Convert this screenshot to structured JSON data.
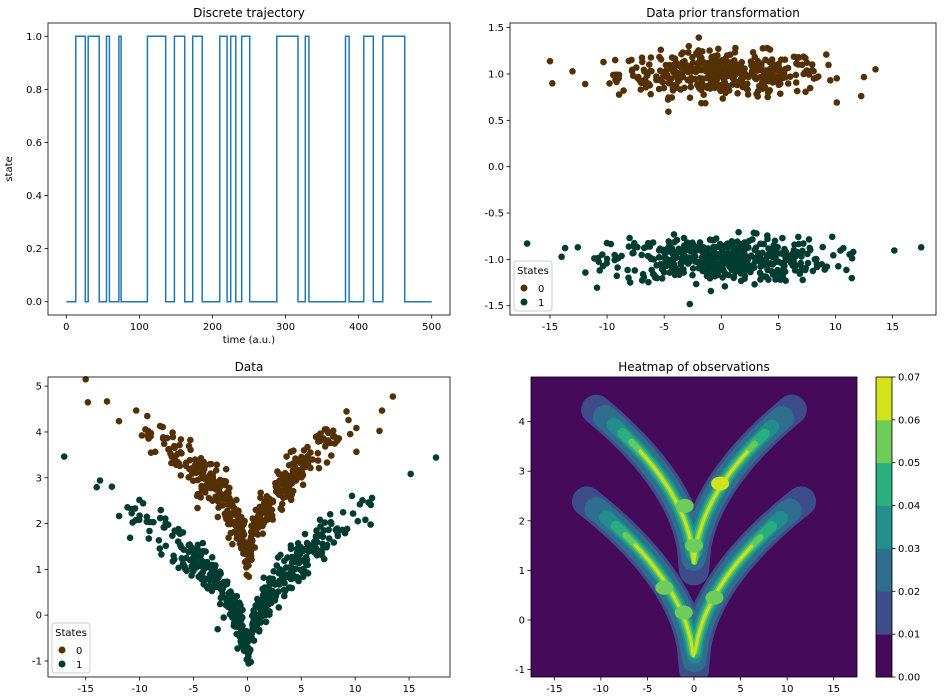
{
  "colors": {
    "state0": "#543005",
    "state1": "#003c30",
    "line": "#1f77b4"
  },
  "chart_data": [
    {
      "type": "line",
      "title": "Discrete trajectory",
      "xlabel": "time (a.u.)",
      "ylabel": "state",
      "xlim": [
        -25,
        525
      ],
      "ylim": [
        -0.05,
        1.05
      ],
      "xticks": [
        0,
        100,
        200,
        300,
        400,
        500
      ],
      "yticks": [
        0.0,
        0.2,
        0.4,
        0.6,
        0.8,
        1.0
      ],
      "ytick_labels": [
        "0.0",
        "0.2",
        "0.4",
        "0.6",
        "0.8",
        "1.0"
      ],
      "series": [
        {
          "x": [
            0,
            13,
            13,
            26,
            26,
            30,
            30,
            45,
            45,
            55,
            55,
            59,
            59,
            72,
            72,
            75,
            75,
            77,
            77,
            111,
            111,
            136,
            136,
            148,
            148,
            162,
            162,
            173,
            173,
            186,
            186,
            210,
            210,
            220,
            220,
            225,
            225,
            232,
            232,
            240,
            240,
            251,
            251,
            288,
            288,
            317,
            317,
            327,
            327,
            332,
            332,
            382,
            382,
            387,
            387,
            407,
            407,
            420,
            420,
            433,
            433,
            463,
            463,
            500
          ],
          "y": [
            0,
            0,
            1,
            1,
            0,
            0,
            1,
            1,
            0,
            0,
            1,
            1,
            0,
            0,
            1,
            1,
            0,
            0,
            0,
            0,
            1,
            1,
            0,
            0,
            1,
            1,
            0,
            0,
            1,
            1,
            0,
            0,
            1,
            1,
            0,
            0,
            1,
            1,
            0,
            0,
            1,
            1,
            0,
            0,
            1,
            1,
            0,
            0,
            1,
            1,
            0,
            0,
            1,
            1,
            0,
            0,
            1,
            1,
            0,
            0,
            1,
            1,
            0,
            0
          ]
        }
      ]
    },
    {
      "type": "scatter",
      "title": "Data prior transformation",
      "xlim": [
        -18.5,
        18.8
      ],
      "ylim": [
        -1.6,
        1.55
      ],
      "xticks": [
        -15,
        -10,
        -5,
        0,
        5,
        10,
        15
      ],
      "yticks": [
        -1.5,
        -1.0,
        -0.5,
        0.0,
        0.5,
        1.0,
        1.5
      ],
      "ytick_labels": [
        "-1.5",
        "-1.0",
        "-0.5",
        "0.0",
        "0.5",
        "1.0",
        "1.5"
      ],
      "legend": {
        "title": "States",
        "entries": [
          "0",
          "1"
        ],
        "position": "lower-left"
      },
      "series": [
        {
          "name": "0",
          "x_range": [
            -15,
            14
          ],
          "y_center": 1.0,
          "y_spread": 0.12,
          "n": 420
        },
        {
          "name": "1",
          "x_range": [
            -17,
            17.5
          ],
          "y_center": -1.0,
          "y_spread": 0.12,
          "n": 480
        }
      ]
    },
    {
      "type": "scatter",
      "title": "Data",
      "xlim": [
        -18.5,
        18.8
      ],
      "ylim": [
        -1.35,
        5.2
      ],
      "xticks": [
        -15,
        -10,
        -5,
        0,
        5,
        10,
        15
      ],
      "yticks": [
        -1,
        0,
        1,
        2,
        3,
        4,
        5
      ],
      "legend": {
        "title": "States",
        "entries": [
          "0",
          "1"
        ],
        "position": "lower-left"
      },
      "series": [
        {
          "name": "0",
          "relation": "y ≈ 1 + sqrt(|x|)",
          "x_range": [
            -15,
            14
          ]
        },
        {
          "name": "1",
          "relation": "y ≈ -1 + sqrt(|x|)",
          "x_range": [
            -17,
            17.5
          ]
        }
      ]
    },
    {
      "type": "heatmap",
      "title": "Heatmap of observations",
      "xlim": [
        -17.5,
        17.5
      ],
      "ylim": [
        -1.15,
        4.9
      ],
      "xticks": [
        -15,
        -10,
        -5,
        0,
        5,
        10,
        15
      ],
      "yticks": [
        -1,
        0,
        1,
        2,
        3,
        4
      ],
      "colorbar": {
        "ticks": [
          "0.00",
          "0.01",
          "0.02",
          "0.03",
          "0.04",
          "0.05",
          "0.06",
          "0.07"
        ],
        "levels": [
          "#450a5a",
          "#3e4c8a",
          "#2f6e8e",
          "#21908d",
          "#2ab07f",
          "#6dcc5a",
          "#d2e21b"
        ]
      }
    }
  ]
}
